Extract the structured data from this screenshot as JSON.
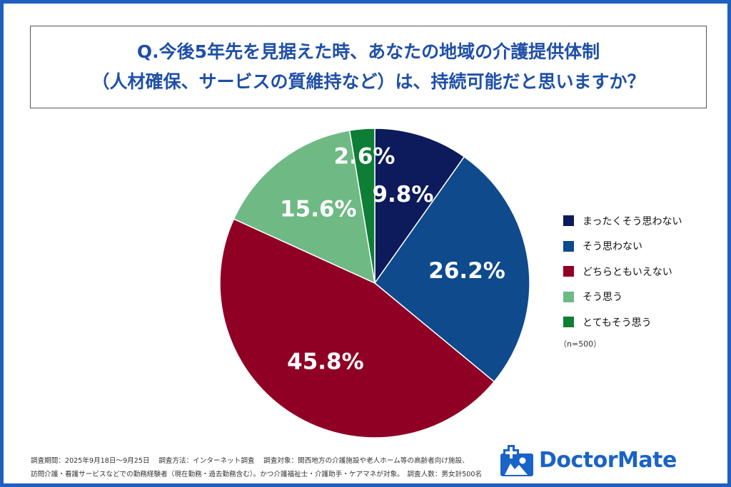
{
  "title": {
    "line1": "Q.今後5年先を見据えた時、あなたの地域の介護提供体制",
    "line2": "（人材確保、サービスの質維持など）は、持続可能だと思いますか？"
  },
  "chart_data": {
    "type": "pie",
    "slices": [
      {
        "name": "まったくそう思わない",
        "value": 9.8,
        "label": "9.8%",
        "color": "#0d1a5c"
      },
      {
        "name": "そう思わない",
        "value": 26.2,
        "label": "26.2%",
        "color": "#0e4a8c"
      },
      {
        "name": "どちらともいえない",
        "value": 45.8,
        "label": "45.8%",
        "color": "#8f0024"
      },
      {
        "name": "そう思う",
        "value": 15.6,
        "label": "15.6%",
        "color": "#6fb985"
      },
      {
        "name": "とてもそう思う",
        "value": 2.6,
        "label": "2.6%",
        "color": "#0e7d35"
      }
    ],
    "legend_position": "right",
    "n_note": "（n=500）"
  },
  "footnote": {
    "line1": "調査期間：2025年9月18日〜9月25日　 調査方法：インターネット調査　 調査対象：関西地方の介護施設や老人ホーム等の高齢者向け施設、",
    "line2": "訪問介護・看護サービスなどでの勤務経験者（現在勤務・過去勤務含む）。かつ介護福祉士・介護助手・ケアマネが対象。　調査人数：男女計500名"
  },
  "logo": {
    "text": "DoctorMate",
    "icon": "doctormate-logo-icon"
  },
  "colors": {
    "frame": "#1f5fbf",
    "title": "#1f4fa8",
    "brand": "#1a63c7"
  }
}
